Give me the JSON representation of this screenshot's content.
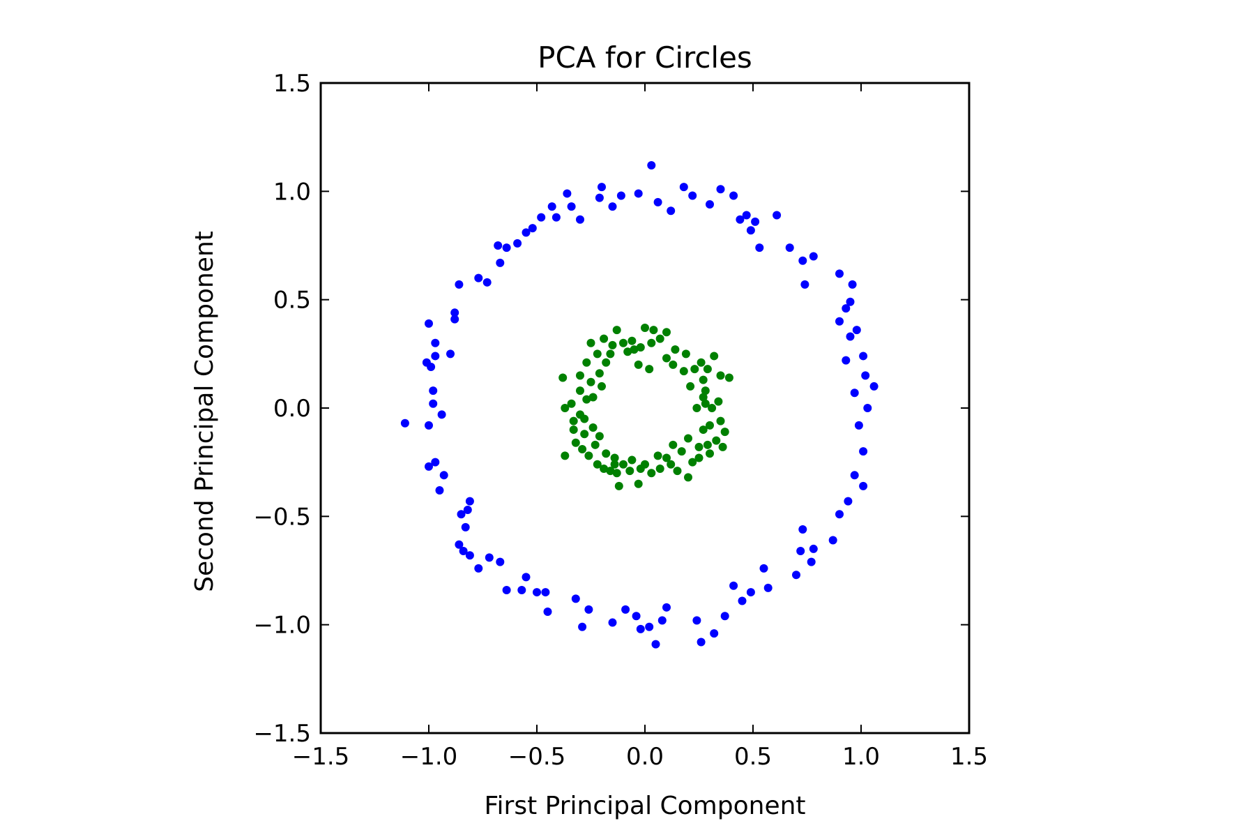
{
  "chart_data": {
    "type": "scatter",
    "title": "PCA for Circles",
    "xlabel": "First Principal Component",
    "ylabel": "Second Principal Component",
    "xlim": [
      -1.5,
      1.5
    ],
    "ylim": [
      -1.5,
      1.5
    ],
    "xticks": [
      -1.5,
      -1.0,
      -0.5,
      0.0,
      0.5,
      1.0,
      1.5
    ],
    "xtick_labels": [
      "−1.5",
      "−1.0",
      "−0.5",
      "0.0",
      "0.5",
      "1.0",
      "1.5"
    ],
    "yticks": [
      -1.5,
      -1.0,
      -0.5,
      0.0,
      0.5,
      1.0,
      1.5
    ],
    "ytick_labels": [
      "−1.5",
      "−1.0",
      "−0.5",
      "0.0",
      "0.5",
      "1.0",
      "1.5"
    ],
    "grid": false,
    "legend": "none",
    "series": [
      {
        "color": "#0000ff",
        "points": [
          [
            1.06,
            0.1
          ],
          [
            1.03,
            0.0
          ],
          [
            1.02,
            0.15
          ],
          [
            1.01,
            0.24
          ],
          [
            0.98,
            0.36
          ],
          [
            0.93,
            0.46
          ],
          [
            0.96,
            0.57
          ],
          [
            0.9,
            0.62
          ],
          [
            0.95,
            0.33
          ],
          [
            0.93,
            0.22
          ],
          [
            0.97,
            0.07
          ],
          [
            0.99,
            -0.08
          ],
          [
            1.01,
            -0.2
          ],
          [
            1.01,
            -0.36
          ],
          [
            0.97,
            -0.31
          ],
          [
            0.94,
            -0.43
          ],
          [
            0.9,
            -0.49
          ],
          [
            0.87,
            -0.61
          ],
          [
            0.78,
            -0.65
          ],
          [
            0.77,
            -0.71
          ],
          [
            0.73,
            -0.56
          ],
          [
            0.72,
            -0.66
          ],
          [
            0.7,
            -0.77
          ],
          [
            0.57,
            -0.83
          ],
          [
            0.55,
            -0.74
          ],
          [
            0.49,
            -0.85
          ],
          [
            0.45,
            -0.89
          ],
          [
            0.41,
            -0.82
          ],
          [
            0.37,
            -0.96
          ],
          [
            0.32,
            -1.04
          ],
          [
            0.26,
            -1.08
          ],
          [
            0.24,
            -0.98
          ],
          [
            0.1,
            -0.92
          ],
          [
            0.08,
            -0.98
          ],
          [
            0.05,
            -1.09
          ],
          [
            0.02,
            -1.01
          ],
          [
            -0.02,
            -1.02
          ],
          [
            -0.04,
            -0.96
          ],
          [
            -0.09,
            -0.93
          ],
          [
            -0.15,
            -0.99
          ],
          [
            -0.26,
            -0.93
          ],
          [
            -0.29,
            -1.01
          ],
          [
            -0.32,
            -0.88
          ],
          [
            -0.45,
            -0.94
          ],
          [
            -0.46,
            -0.85
          ],
          [
            -0.5,
            -0.85
          ],
          [
            -0.55,
            -0.78
          ],
          [
            -0.57,
            -0.84
          ],
          [
            -0.64,
            -0.84
          ],
          [
            -0.67,
            -0.71
          ],
          [
            -0.72,
            -0.69
          ],
          [
            -0.77,
            -0.74
          ],
          [
            -0.81,
            -0.68
          ],
          [
            -0.84,
            -0.66
          ],
          [
            -0.86,
            -0.63
          ],
          [
            -0.83,
            -0.55
          ],
          [
            -0.85,
            -0.49
          ],
          [
            -0.81,
            -0.43
          ],
          [
            -0.82,
            -0.47
          ],
          [
            -0.95,
            -0.38
          ],
          [
            -0.93,
            -0.31
          ],
          [
            -0.97,
            -0.25
          ],
          [
            -1.0,
            -0.27
          ],
          [
            -0.94,
            -0.03
          ],
          [
            -1.0,
            -0.08
          ],
          [
            -1.11,
            -0.07
          ],
          [
            -0.98,
            0.08
          ],
          [
            -0.98,
            0.02
          ],
          [
            -0.99,
            0.19
          ],
          [
            -1.01,
            0.21
          ],
          [
            -0.97,
            0.24
          ],
          [
            -0.97,
            0.3
          ],
          [
            -1.0,
            0.39
          ],
          [
            -0.88,
            0.41
          ],
          [
            -0.88,
            0.44
          ],
          [
            -0.9,
            0.25
          ],
          [
            -0.86,
            0.57
          ],
          [
            -0.77,
            0.6
          ],
          [
            -0.73,
            0.58
          ],
          [
            -0.67,
            0.67
          ],
          [
            -0.68,
            0.75
          ],
          [
            -0.64,
            0.74
          ],
          [
            -0.59,
            0.76
          ],
          [
            -0.55,
            0.81
          ],
          [
            -0.52,
            0.83
          ],
          [
            -0.48,
            0.88
          ],
          [
            -0.43,
            0.93
          ],
          [
            -0.41,
            0.88
          ],
          [
            -0.36,
            0.99
          ],
          [
            -0.34,
            0.93
          ],
          [
            -0.3,
            0.87
          ],
          [
            -0.21,
            0.97
          ],
          [
            -0.2,
            1.02
          ],
          [
            -0.15,
            0.93
          ],
          [
            -0.11,
            0.98
          ],
          [
            -0.03,
            0.99
          ],
          [
            0.03,
            1.12
          ],
          [
            0.06,
            0.95
          ],
          [
            0.12,
            0.91
          ],
          [
            0.18,
            1.02
          ],
          [
            0.22,
            0.98
          ],
          [
            0.3,
            0.94
          ],
          [
            0.35,
            1.01
          ],
          [
            0.41,
            0.98
          ],
          [
            0.44,
            0.87
          ],
          [
            0.47,
            0.89
          ],
          [
            0.51,
            0.86
          ],
          [
            0.49,
            0.82
          ],
          [
            0.53,
            0.74
          ],
          [
            0.61,
            0.89
          ],
          [
            0.67,
            0.74
          ],
          [
            0.73,
            0.68
          ],
          [
            0.78,
            0.7
          ],
          [
            0.74,
            0.57
          ],
          [
            0.9,
            0.4
          ],
          [
            0.95,
            0.49
          ]
        ]
      },
      {
        "color": "#008000",
        "points": [
          [
            0.0,
            0.37
          ],
          [
            -0.06,
            0.31
          ],
          [
            -0.02,
            0.28
          ],
          [
            0.03,
            0.3
          ],
          [
            0.1,
            0.35
          ],
          [
            0.14,
            0.27
          ],
          [
            0.19,
            0.25
          ],
          [
            0.26,
            0.21
          ],
          [
            0.29,
            0.18
          ],
          [
            0.32,
            0.24
          ],
          [
            0.35,
            0.15
          ],
          [
            0.39,
            0.14
          ],
          [
            0.34,
            0.03
          ],
          [
            0.31,
            0.0
          ],
          [
            0.27,
            0.05
          ],
          [
            0.35,
            -0.06
          ],
          [
            0.37,
            -0.11
          ],
          [
            0.36,
            -0.18
          ],
          [
            0.3,
            -0.21
          ],
          [
            0.25,
            -0.18
          ],
          [
            0.22,
            -0.25
          ],
          [
            0.2,
            -0.32
          ],
          [
            0.15,
            -0.29
          ],
          [
            0.12,
            -0.26
          ],
          [
            0.07,
            -0.28
          ],
          [
            0.03,
            -0.3
          ],
          [
            -0.03,
            -0.35
          ],
          [
            -0.07,
            -0.29
          ],
          [
            -0.13,
            -0.3
          ],
          [
            -0.14,
            -0.26
          ],
          [
            -0.12,
            -0.36
          ],
          [
            -0.19,
            -0.28
          ],
          [
            -0.22,
            -0.26
          ],
          [
            -0.26,
            -0.22
          ],
          [
            -0.29,
            -0.19
          ],
          [
            -0.32,
            -0.16
          ],
          [
            -0.37,
            -0.22
          ],
          [
            -0.33,
            -0.1
          ],
          [
            -0.33,
            -0.06
          ],
          [
            -0.3,
            -0.03
          ],
          [
            -0.34,
            0.02
          ],
          [
            -0.37,
            0.0
          ],
          [
            -0.38,
            0.14
          ],
          [
            -0.3,
            0.15
          ],
          [
            -0.27,
            0.21
          ],
          [
            -0.22,
            0.25
          ],
          [
            -0.25,
            0.3
          ],
          [
            -0.19,
            0.32
          ],
          [
            -0.15,
            0.29
          ],
          [
            -0.13,
            0.36
          ],
          [
            -0.1,
            0.3
          ],
          [
            -0.05,
            0.27
          ],
          [
            0.07,
            0.32
          ],
          [
            0.04,
            0.36
          ],
          [
            0.1,
            0.23
          ],
          [
            0.18,
            0.17
          ],
          [
            0.23,
            0.18
          ],
          [
            0.27,
            0.13
          ],
          [
            0.28,
            0.08
          ],
          [
            0.28,
            0.02
          ],
          [
            0.3,
            -0.08
          ],
          [
            0.33,
            -0.15
          ],
          [
            0.29,
            -0.17
          ],
          [
            0.25,
            -0.23
          ],
          [
            0.17,
            -0.2
          ],
          [
            0.1,
            -0.23
          ],
          [
            0.06,
            -0.22
          ],
          [
            0.0,
            -0.26
          ],
          [
            -0.06,
            -0.24
          ],
          [
            -0.14,
            -0.23
          ],
          [
            -0.18,
            -0.21
          ],
          [
            -0.23,
            -0.17
          ],
          [
            -0.28,
            -0.12
          ],
          [
            -0.28,
            -0.05
          ],
          [
            -0.27,
            0.04
          ],
          [
            -0.25,
            0.12
          ],
          [
            -0.21,
            0.16
          ],
          [
            -0.18,
            0.21
          ],
          [
            -0.03,
            0.2
          ],
          [
            0.02,
            0.18
          ],
          [
            0.13,
            0.2
          ],
          [
            0.21,
            0.1
          ],
          [
            0.24,
            0.0
          ],
          [
            0.27,
            -0.1
          ],
          [
            0.2,
            -0.14
          ],
          [
            0.13,
            -0.17
          ],
          [
            -0.02,
            -0.28
          ],
          [
            -0.1,
            -0.26
          ],
          [
            -0.16,
            -0.29
          ],
          [
            -0.21,
            -0.13
          ],
          [
            -0.24,
            -0.09
          ],
          [
            -0.3,
            0.08
          ],
          [
            -0.24,
            0.05
          ],
          [
            -0.2,
            0.1
          ],
          [
            -0.16,
            0.25
          ],
          [
            -0.08,
            0.26
          ]
        ]
      }
    ]
  }
}
